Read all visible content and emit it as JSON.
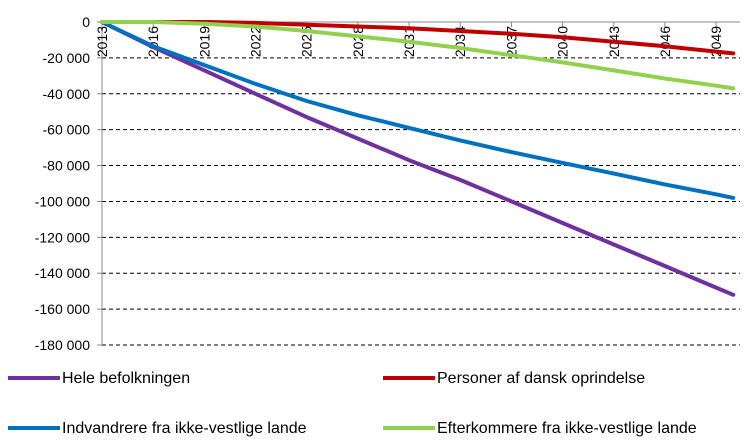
{
  "chart_data": {
    "type": "line",
    "title": "",
    "xlabel": "",
    "ylabel": "",
    "ylim": [
      -180000,
      0
    ],
    "xlim": [
      2013,
      2050
    ],
    "y_ticks": [
      0,
      -20000,
      -40000,
      -60000,
      -80000,
      -100000,
      -120000,
      -140000,
      -160000,
      -180000
    ],
    "y_tick_labels": [
      "0",
      "-20 000",
      "-40 000",
      "-60 000",
      "-80 000",
      "-100 000",
      "-120 000",
      "-140 000",
      "-160 000",
      "-180 000"
    ],
    "x_ticks": [
      2013,
      2016,
      2019,
      2022,
      2025,
      2028,
      2031,
      2034,
      2037,
      2040,
      2043,
      2046,
      2049
    ],
    "x_tick_labels": [
      "2013",
      "2016",
      "2019",
      "2022",
      "2025",
      "2028",
      "2031",
      "2034",
      "2037",
      "2040",
      "2043",
      "2046",
      "2049"
    ],
    "grid": "horizontal dashed",
    "legend_position": "bottom",
    "x": [
      2013,
      2016,
      2019,
      2022,
      2025,
      2028,
      2031,
      2034,
      2037,
      2040,
      2043,
      2046,
      2049,
      2050
    ],
    "series": [
      {
        "name": "Hele befolkningen",
        "color": "#7030A0",
        "values": [
          0,
          -14000,
          -27000,
          -40000,
          -53000,
          -65000,
          -77000,
          -88000,
          -100000,
          -112000,
          -124000,
          -136000,
          -148000,
          -152000
        ]
      },
      {
        "name": "Personer af dansk oprindelse",
        "color": "#C00000",
        "values": [
          0,
          0,
          0,
          -500,
          -1500,
          -2500,
          -3500,
          -5000,
          -6500,
          -8500,
          -11000,
          -13500,
          -16500,
          -17500
        ]
      },
      {
        "name": "Indvandrere fra ikke-vestlige lande",
        "color": "#0070C0",
        "values": [
          0,
          -13500,
          -24000,
          -34500,
          -44000,
          -52000,
          -59000,
          -66000,
          -72500,
          -78500,
          -84500,
          -90500,
          -96000,
          -98000
        ]
      },
      {
        "name": "Efterkommere fra ikke-vestlige lande",
        "color": "#92D050",
        "values": [
          0,
          0,
          -1000,
          -2500,
          -5000,
          -8000,
          -11000,
          -14500,
          -18500,
          -22500,
          -27000,
          -31500,
          -35500,
          -37000
        ]
      }
    ]
  }
}
